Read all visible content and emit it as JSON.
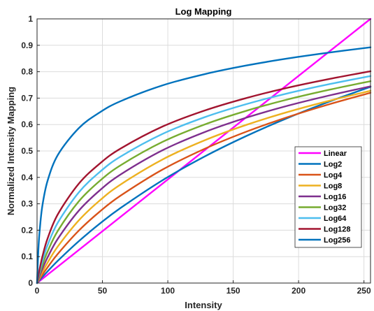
{
  "chart_data": {
    "type": "line",
    "title": "Log Mapping",
    "xlabel": "Intensity",
    "ylabel": "Normalized Intensity Mapping",
    "xlim": [
      0,
      255
    ],
    "ylim": [
      0,
      1
    ],
    "xticks": [
      0,
      50,
      100,
      150,
      200,
      250
    ],
    "xtick_labels": [
      "0",
      "50",
      "100",
      "150",
      "200",
      "250"
    ],
    "yticks": [
      0,
      0.1,
      0.2,
      0.3,
      0.4,
      0.5,
      0.6,
      0.7,
      0.8,
      0.9,
      1
    ],
    "ytick_labels": [
      "0",
      "0.1",
      "0.2",
      "0.3",
      "0.4",
      "0.5",
      "0.6",
      "0.7",
      "0.8",
      "0.9",
      "1"
    ],
    "grid": true,
    "legend_position": "lower-right",
    "x": [
      0,
      1,
      2,
      4,
      8,
      16,
      32,
      48,
      64,
      96,
      128,
      160,
      192,
      224,
      255
    ],
    "series": [
      {
        "name": "Linear",
        "color": "#FF00FF",
        "values": [
          0,
          0.0039,
          0.0078,
          0.0157,
          0.0314,
          0.0627,
          0.1255,
          0.1882,
          0.251,
          0.3765,
          0.502,
          0.6275,
          0.7529,
          0.8784,
          1
        ]
      },
      {
        "name": "Log2",
        "color": "#0072BD",
        "values": [
          0,
          0.0056,
          0.0112,
          0.0223,
          0.0439,
          0.0849,
          0.1588,
          0.2249,
          0.2847,
          0.3893,
          0.4786,
          0.5565,
          0.6257,
          0.6878,
          0.7427
        ]
      },
      {
        "name": "Log4",
        "color": "#D95319",
        "values": [
          0,
          0.0078,
          0.0155,
          0.0305,
          0.0591,
          0.1112,
          0.1989,
          0.2707,
          0.3312,
          0.4296,
          0.5078,
          0.5729,
          0.6287,
          0.6776,
          0.7202
        ]
      },
      {
        "name": "Log8",
        "color": "#EDB120",
        "values": [
          0,
          0.0106,
          0.0209,
          0.0406,
          0.0768,
          0.1393,
          0.2376,
          0.3128,
          0.3735,
          0.4679,
          0.5401,
          0.5987,
          0.648,
          0.6907,
          0.7276
        ]
      },
      {
        "name": "Log16",
        "color": "#7E2F8E",
        "values": [
          0,
          0.0139,
          0.0274,
          0.0525,
          0.0966,
          0.1684,
          0.2744,
          0.351,
          0.4113,
          0.5027,
          0.5711,
          0.6259,
          0.6716,
          0.7107,
          0.7445
        ]
      },
      {
        "name": "Log32",
        "color": "#77AC30",
        "values": [
          0,
          0.0179,
          0.035,
          0.0663,
          0.1188,
          0.1986,
          0.3097,
          0.3869,
          0.4462,
          0.5345,
          0.6,
          0.652,
          0.6954,
          0.7322,
          0.7641
        ]
      },
      {
        "name": "Log64",
        "color": "#4DBEEE",
        "values": [
          0,
          0.0225,
          0.0437,
          0.0817,
          0.1428,
          0.2297,
          0.3437,
          0.4207,
          0.4791,
          0.5647,
          0.6275,
          0.6772,
          0.7185,
          0.7534,
          0.7836
        ]
      },
      {
        "name": "Log128",
        "color": "#A2142F",
        "values": [
          0,
          0.0277,
          0.0535,
          0.0985,
          0.1679,
          0.2612,
          0.3766,
          0.4524,
          0.5094,
          0.5925,
          0.6528,
          0.7003,
          0.7397,
          0.773,
          0.8017
        ]
      },
      {
        "name": "Log256",
        "color": "#0072BD",
        "values": [
          0,
          0.1251,
          0.1983,
          0.2903,
          0.3863,
          0.4859,
          0.5867,
          0.6462,
          0.6887,
          0.7484,
          0.7906,
          0.8235,
          0.8502,
          0.8728,
          0.8923
        ]
      }
    ]
  }
}
